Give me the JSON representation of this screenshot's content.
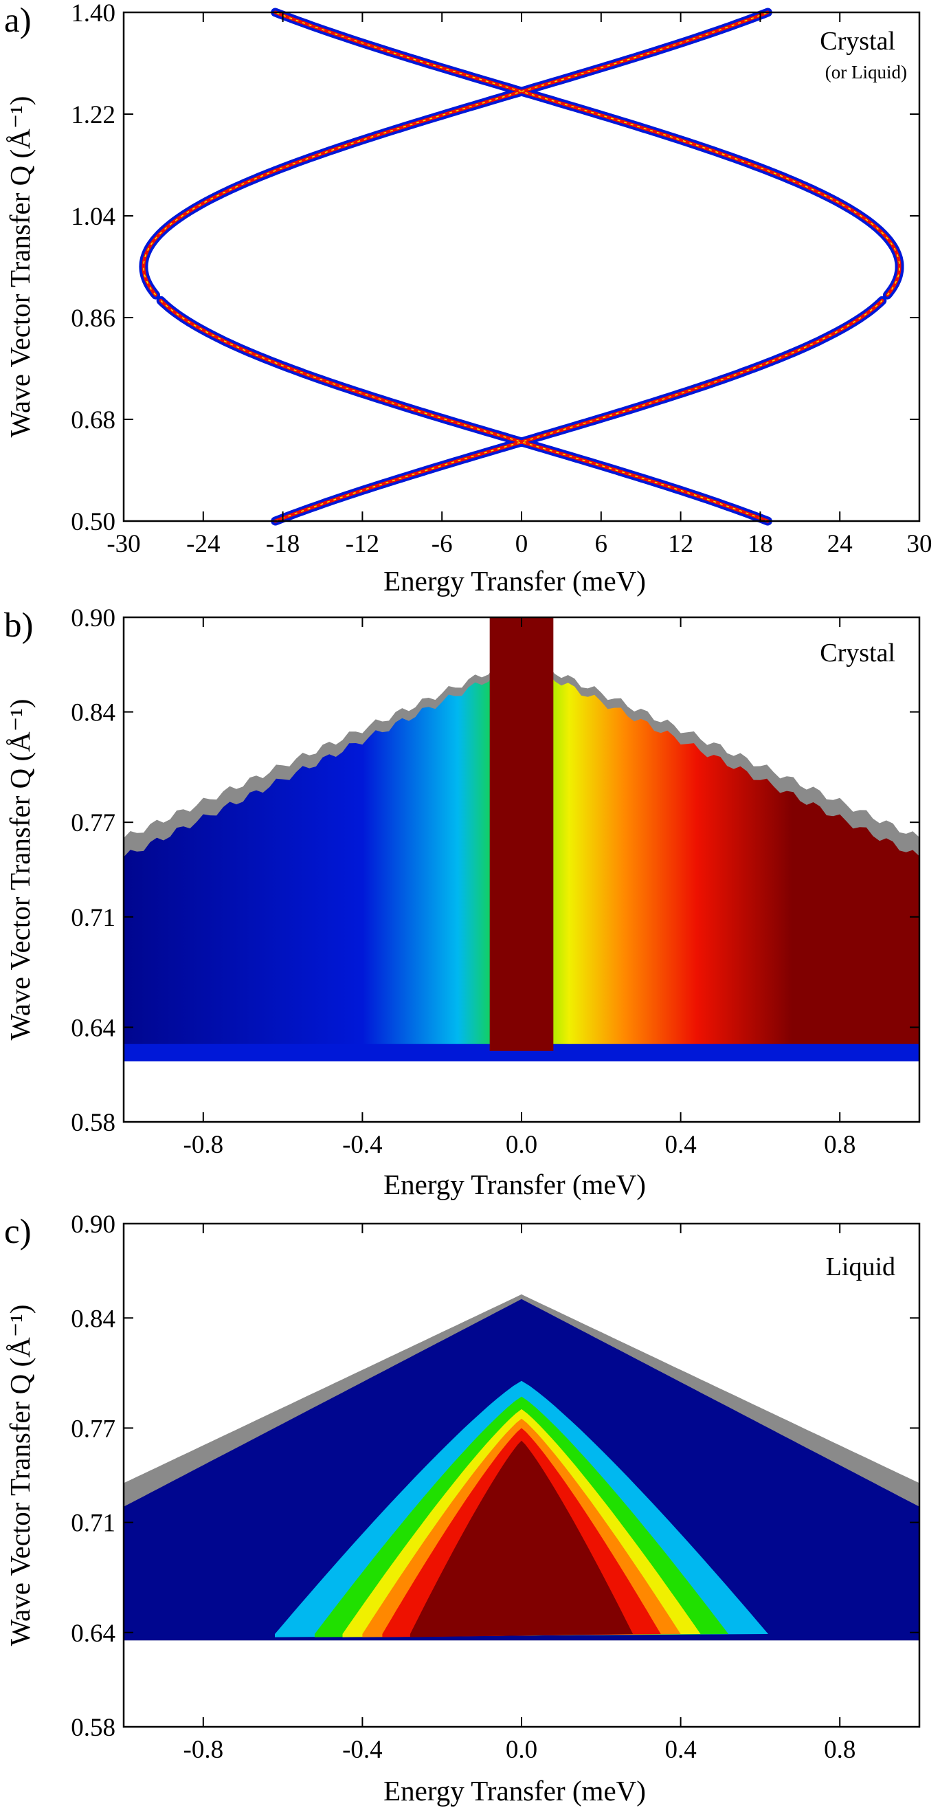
{
  "chart_data": [
    {
      "panel_label": "a)",
      "type": "heatmap",
      "xlabel": "Energy Transfer (meV)",
      "ylabel": "Wave Vector Transfer Q (Å⁻¹)",
      "xlim": [
        -30,
        30
      ],
      "ylim": [
        0.5,
        1.4
      ],
      "x_ticks": [
        "-30",
        "-24",
        "-18",
        "-12",
        "-6",
        "0",
        "6",
        "12",
        "18",
        "24",
        "30"
      ],
      "y_ticks": [
        "0.50",
        "0.68",
        "0.86",
        "1.04",
        "1.22",
        "1.40"
      ],
      "annotation": "Crystal",
      "annotation_sub": "(or Liquid)",
      "dispersion": {
        "max_energy_meV": 28.5,
        "zero_crossings_Q": [
          0.64,
          1.26
        ],
        "gap_Q": [
          0.89,
          0.9
        ]
      }
    },
    {
      "panel_label": "b)",
      "type": "heatmap",
      "xlabel": "Energy Transfer (meV)",
      "ylabel": "Wave Vector Transfer Q (Å⁻¹)",
      "xlim": [
        -1.0,
        1.0
      ],
      "ylim": [
        0.58,
        0.9
      ],
      "x_ticks": [
        "-0.8",
        "-0.4",
        "0.0",
        "0.4",
        "0.8"
      ],
      "y_ticks": [
        "0.58",
        "0.64",
        "0.71",
        "0.77",
        "0.84",
        "0.90"
      ],
      "annotation": "Crystal",
      "data_region": {
        "Q_min": 0.625,
        "Q_top_at_zero": 0.875,
        "Q_top_at_edge": 0.76
      }
    },
    {
      "panel_label": "c)",
      "type": "heatmap",
      "xlabel": "Energy Transfer (meV)",
      "ylabel": "Wave Vector Transfer Q (Å⁻¹)",
      "xlim": [
        -1.0,
        1.0
      ],
      "ylim": [
        0.58,
        0.9
      ],
      "x_ticks": [
        "-0.8",
        "-0.4",
        "0.0",
        "0.4",
        "0.8"
      ],
      "y_ticks": [
        "0.58",
        "0.64",
        "0.71",
        "0.77",
        "0.84",
        "0.90"
      ],
      "annotation": "Liquid",
      "data_region": {
        "Q_min": 0.635,
        "Q_top_at_zero": 0.855,
        "Q_top_at_edge": 0.735
      }
    }
  ],
  "colors": {
    "dark_blue": "#00068f",
    "blue": "#0018d8",
    "cyan": "#00b8f0",
    "green": "#20e000",
    "yellow": "#f0f000",
    "orange": "#ff8800",
    "red": "#ee1100",
    "dark_red": "#800000",
    "gray": "#8a8a8a"
  }
}
